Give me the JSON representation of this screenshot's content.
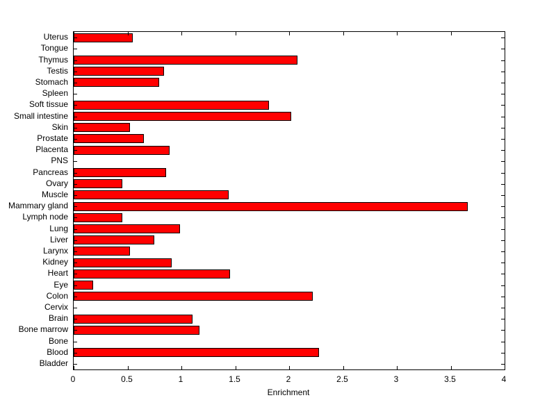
{
  "chart_data": {
    "type": "bar",
    "orientation": "horizontal",
    "title": "",
    "xlabel": "Enrichment",
    "ylabel": "",
    "xlim": [
      0,
      4
    ],
    "grid": false,
    "categories": [
      "Uterus",
      "Tongue",
      "Thymus",
      "Testis",
      "Stomach",
      "Spleen",
      "Soft tissue",
      "Small intestine",
      "Skin",
      "Prostate",
      "Placenta",
      "PNS",
      "Pancreas",
      "Ovary",
      "Muscle",
      "Mammary gland",
      "Lymph node",
      "Lung",
      "Liver",
      "Larynx",
      "Kidney",
      "Heart",
      "Eye",
      "Colon",
      "Cervix",
      "Brain",
      "Bone marrow",
      "Bone",
      "Blood",
      "Bladder"
    ],
    "values": [
      0.55,
      0,
      2.08,
      0.84,
      0.79,
      0,
      1.81,
      2.02,
      0.52,
      0.65,
      0.89,
      0,
      0.86,
      0.45,
      1.44,
      3.66,
      0.45,
      0.99,
      0.75,
      0.52,
      0.91,
      1.45,
      0.18,
      2.22,
      0,
      1.1,
      1.17,
      0,
      2.28,
      0
    ],
    "xtick_values": [
      0,
      0.5,
      1,
      1.5,
      2,
      2.5,
      3,
      3.5,
      4
    ],
    "xtick_labels": [
      "0",
      "0.5",
      "1",
      "1.5",
      "2",
      "2.5",
      "3",
      "3.5",
      "4"
    ],
    "bar_color": "#ff0000",
    "bar_edge_color": "#000000",
    "axis_color": "#000000",
    "text_color": "#000000",
    "background_color": "#ffffff"
  }
}
